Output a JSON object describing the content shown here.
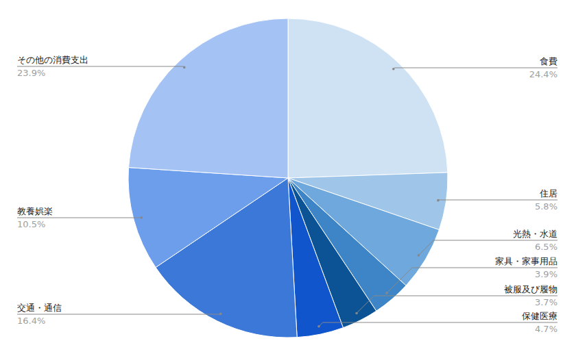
{
  "chart_data": {
    "type": "pie",
    "categories": [
      "食費",
      "住居",
      "光熱・水道",
      "家具・家事用品",
      "被服及び履物",
      "保健医療",
      "交通・通信",
      "教養娯楽",
      "その他の消費支出"
    ],
    "values": [
      24.4,
      5.8,
      6.5,
      3.9,
      3.7,
      4.7,
      16.4,
      10.5,
      23.9
    ],
    "value_labels": [
      "24.4%",
      "5.8%",
      "6.5%",
      "3.9%",
      "3.7%",
      "4.7%",
      "16.4%",
      "10.5%",
      "23.9%"
    ],
    "colors": [
      "#cfe2f3",
      "#9fc5e8",
      "#6fa8dc",
      "#3d85c6",
      "#0b5394",
      "#1155cc",
      "#3c78d8",
      "#6d9eeb",
      "#a4c2f4"
    ],
    "data_labels": true
  }
}
